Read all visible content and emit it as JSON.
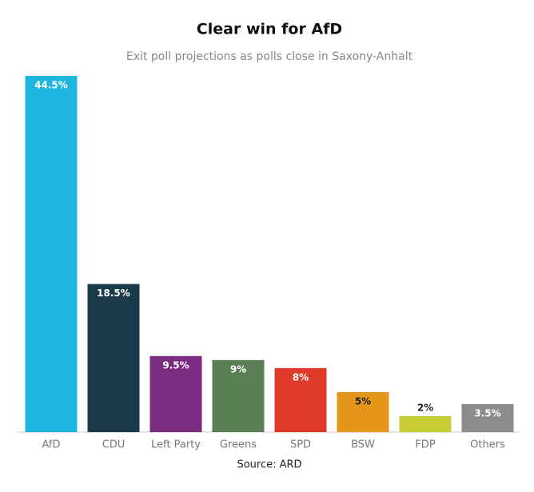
{
  "chart_data": {
    "type": "bar",
    "title": "Clear win for AfD",
    "subtitle": "Exit poll projections as polls close in Saxony-Anhalt",
    "source": "Source: ARD",
    "categories": [
      "AfD",
      "CDU",
      "Left Party",
      "Greens",
      "SPD",
      "BSW",
      "FDP",
      "Others"
    ],
    "values": [
      44.5,
      18.5,
      9.5,
      9,
      8,
      5,
      2,
      3.5
    ],
    "value_labels": [
      "44.5%",
      "18.5%",
      "9.5%",
      "9%",
      "8%",
      "5%",
      "2%",
      "3.5%"
    ],
    "colors": [
      "#1eb5e0",
      "#1a3a4a",
      "#7b2d82",
      "#5a7f55",
      "#e03a2a",
      "#e3961a",
      "#c8cc35",
      "#8c8c8c"
    ]
  }
}
